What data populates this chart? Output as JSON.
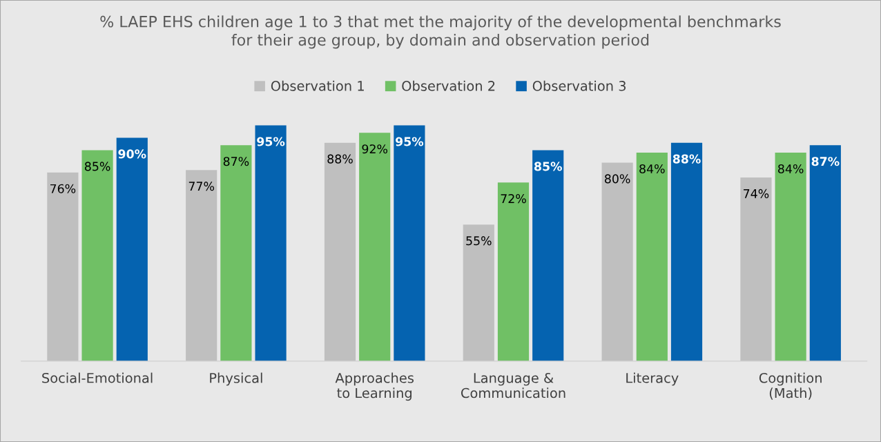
{
  "chart_data": {
    "type": "bar",
    "title": "% LAEP EHS children age 1 to 3 that met the majority of the developmental benchmarks\nfor their age group, by domain and observation period",
    "categories": [
      "Social-Emotional",
      "Physical",
      "Approaches\nto Learning",
      "Language &\nCommunication",
      "Literacy",
      "Cognition\n(Math)"
    ],
    "series": [
      {
        "name": "Observation 1",
        "color": "#bfbfbf",
        "values": [
          76,
          77,
          88,
          55,
          80,
          74
        ],
        "value_labels": [
          "76%",
          "77%",
          "88%",
          "55%",
          "80%",
          "74%"
        ]
      },
      {
        "name": "Observation 2",
        "color": "#70c065",
        "values": [
          85,
          87,
          92,
          72,
          84,
          84
        ],
        "value_labels": [
          "85%",
          "87%",
          "92%",
          "72%",
          "84%",
          "84%"
        ]
      },
      {
        "name": "Observation 3",
        "color": "#0563b0",
        "values": [
          90,
          95,
          95,
          85,
          88,
          87
        ],
        "value_labels": [
          "90%",
          "95%",
          "95%",
          "85%",
          "88%",
          "87%"
        ]
      }
    ],
    "legend": "top",
    "grid": false
  }
}
